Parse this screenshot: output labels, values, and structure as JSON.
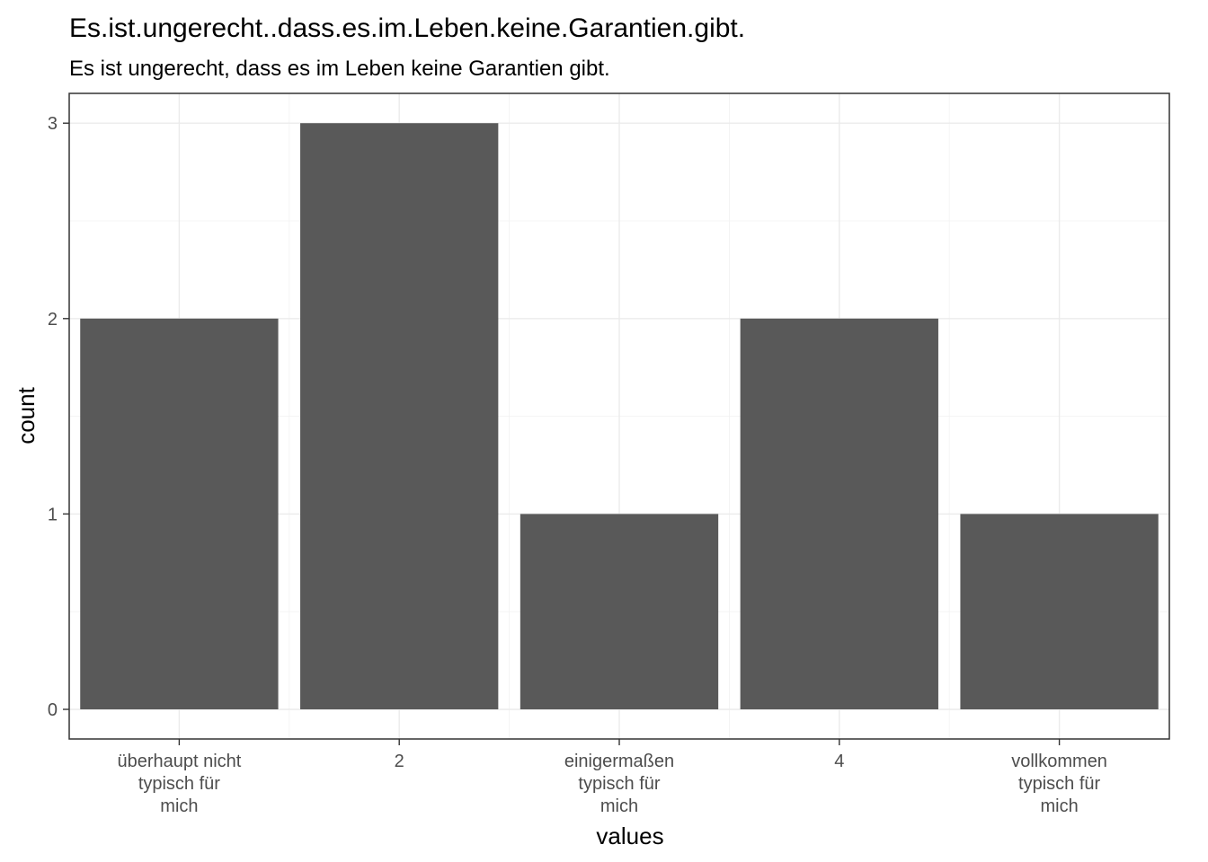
{
  "chart_data": {
    "type": "bar",
    "title": "Es.ist.ungerecht..dass.es.im.Leben.keine.Garantien.gibt.",
    "subtitle": "Es ist ungerecht, dass es im Leben keine Garantien gibt.",
    "xlabel": "values",
    "ylabel": "count",
    "categories": [
      [
        "überhaupt nicht",
        "typisch für",
        "mich"
      ],
      [
        "2"
      ],
      [
        "einigermaßen",
        "typisch für",
        "mich"
      ],
      [
        "4"
      ],
      [
        "vollkommen",
        "typisch für",
        "mich"
      ]
    ],
    "values": [
      2,
      3,
      1,
      2,
      1
    ],
    "ylim": [
      0,
      3.15
    ],
    "yticks": [
      0,
      1,
      2,
      3
    ],
    "grid": true,
    "legend": "none",
    "colors": {
      "bar": "#595959",
      "background": "#ffffff"
    }
  }
}
